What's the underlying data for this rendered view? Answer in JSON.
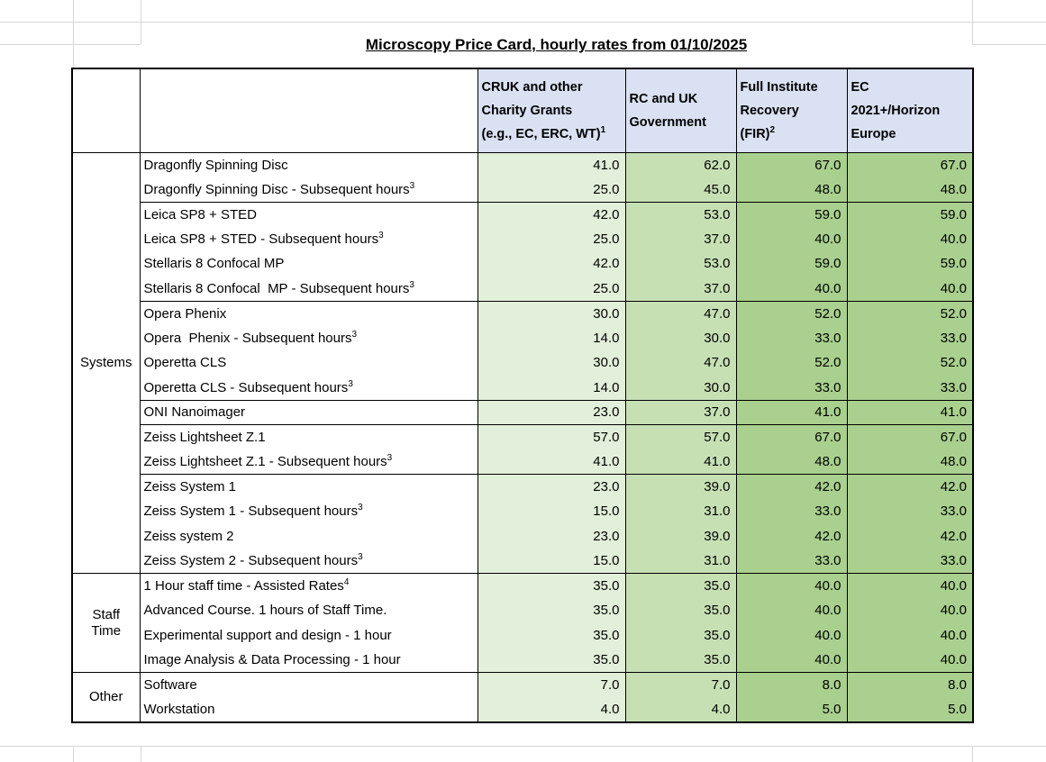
{
  "title": "Microscopy Price Card, hourly rates from 01/10/2025",
  "colors": {
    "header_bg": "#D9E1F2",
    "value_columns": [
      "#E2EFDA",
      "#C6E0B4",
      "#A9D08E",
      "#A9D08E"
    ],
    "table_border": "#000000",
    "gridline": "#D6D6D6"
  },
  "table": {
    "column_headers": [
      {
        "lines": [
          "CRUK and other",
          "Charity Grants",
          "(e.g., EC, ERC, WT)"
        ],
        "sup": "1"
      },
      {
        "lines": [
          "RC and UK",
          "Government"
        ]
      },
      {
        "lines": [
          "Full Institute",
          "Recovery",
          "(FIR)"
        ],
        "sup": "2"
      },
      {
        "lines": [
          "EC",
          "2021+/Horizon",
          "Europe"
        ]
      }
    ],
    "groups": [
      {
        "label": "Systems",
        "blocks": [
          [
            {
              "item": "Dragonfly Spinning Disc",
              "values": [
                "41.0",
                "62.0",
                "67.0",
                "67.0"
              ]
            },
            {
              "item": "Dragonfly Spinning Disc - Subsequent hours",
              "sup": "3",
              "values": [
                "25.0",
                "45.0",
                "48.0",
                "48.0"
              ]
            }
          ],
          [
            {
              "item": "Leica SP8 + STED",
              "values": [
                "42.0",
                "53.0",
                "59.0",
                "59.0"
              ]
            },
            {
              "item": "Leica SP8 + STED - Subsequent hours",
              "sup": "3",
              "values": [
                "25.0",
                "37.0",
                "40.0",
                "40.0"
              ]
            },
            {
              "item": "Stellaris 8 Confocal MP",
              "values": [
                "42.0",
                "53.0",
                "59.0",
                "59.0"
              ]
            },
            {
              "item": "Stellaris 8 Confocal  MP - Subsequent hours",
              "sup": "3",
              "values": [
                "25.0",
                "37.0",
                "40.0",
                "40.0"
              ]
            }
          ],
          [
            {
              "item": "Opera Phenix",
              "values": [
                "30.0",
                "47.0",
                "52.0",
                "52.0"
              ]
            },
            {
              "item": "Opera  Phenix - Subsequent hours",
              "sup": "3",
              "values": [
                "14.0",
                "30.0",
                "33.0",
                "33.0"
              ]
            },
            {
              "item": "Operetta CLS",
              "values": [
                "30.0",
                "47.0",
                "52.0",
                "52.0"
              ]
            },
            {
              "item": "Operetta CLS - Subsequent hours",
              "sup": "3",
              "values": [
                "14.0",
                "30.0",
                "33.0",
                "33.0"
              ]
            }
          ],
          [
            {
              "item": "ONI Nanoimager",
              "values": [
                "23.0",
                "37.0",
                "41.0",
                "41.0"
              ]
            }
          ],
          [
            {
              "item": "Zeiss Lightsheet Z.1",
              "values": [
                "57.0",
                "57.0",
                "67.0",
                "67.0"
              ]
            },
            {
              "item": "Zeiss Lightsheet Z.1 - Subsequent hours",
              "sup": "3",
              "values": [
                "41.0",
                "41.0",
                "48.0",
                "48.0"
              ]
            }
          ],
          [
            {
              "item": "Zeiss System 1",
              "values": [
                "23.0",
                "39.0",
                "42.0",
                "42.0"
              ]
            },
            {
              "item": "Zeiss System 1 - Subsequent hours",
              "sup": "3",
              "values": [
                "15.0",
                "31.0",
                "33.0",
                "33.0"
              ]
            },
            {
              "item": "Zeiss system 2",
              "values": [
                "23.0",
                "39.0",
                "42.0",
                "42.0"
              ]
            },
            {
              "item": "Zeiss System 2 - Subsequent hours",
              "sup": "3",
              "values": [
                "15.0",
                "31.0",
                "33.0",
                "33.0"
              ]
            }
          ]
        ]
      },
      {
        "label": "Staff Time",
        "blocks": [
          [
            {
              "item": "1 Hour staff time - Assisted Rates",
              "sup": "4",
              "values": [
                "35.0",
                "35.0",
                "40.0",
                "40.0"
              ]
            },
            {
              "item": "Advanced Course. 1 hours of Staff Time.",
              "values": [
                "35.0",
                "35.0",
                "40.0",
                "40.0"
              ]
            },
            {
              "item": "Experimental support and design - 1 hour",
              "values": [
                "35.0",
                "35.0",
                "40.0",
                "40.0"
              ]
            },
            {
              "item": "Image Analysis & Data Processing - 1 hour",
              "values": [
                "35.0",
                "35.0",
                "40.0",
                "40.0"
              ]
            }
          ]
        ]
      },
      {
        "label": "Other",
        "blocks": [
          [
            {
              "item": "Software",
              "values": [
                "7.0",
                "7.0",
                "8.0",
                "8.0"
              ]
            },
            {
              "item": "Workstation",
              "values": [
                "4.0",
                "4.0",
                "5.0",
                "5.0"
              ]
            }
          ]
        ]
      }
    ]
  }
}
